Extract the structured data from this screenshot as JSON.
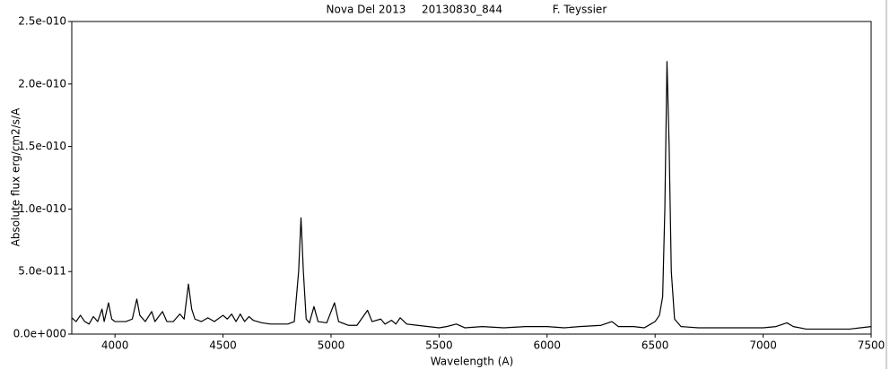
{
  "chart_data": {
    "type": "line",
    "title": [
      "Nova Del 2013",
      "20130830_844",
      "F. Teyssier"
    ],
    "x_label": "Wavelength (A)",
    "y_label": "Absolute flux erg/cm2/s/A",
    "xlim": [
      3800,
      7500
    ],
    "xticks": [
      4000,
      4500,
      5000,
      5500,
      6000,
      6500,
      7000,
      7500
    ],
    "ylim": [
      0,
      2.5e-10
    ],
    "yticks": [
      {
        "value": 0,
        "label": "0.0e+000"
      },
      {
        "value": 5e-11,
        "label": "5.0e-011"
      },
      {
        "value": 1e-10,
        "label": "1.0e-010"
      },
      {
        "value": 1.5e-10,
        "label": "1.5e-010"
      },
      {
        "value": 2e-10,
        "label": "2.0e-010"
      },
      {
        "value": 2.5e-10,
        "label": "2.5e-010"
      }
    ],
    "color": "#000000",
    "x": [
      3800,
      3820,
      3840,
      3860,
      3880,
      3900,
      3920,
      3940,
      3950,
      3970,
      3985,
      4000,
      4050,
      4080,
      4101,
      4115,
      4140,
      4170,
      4185,
      4220,
      4240,
      4270,
      4300,
      4320,
      4340,
      4355,
      4370,
      4400,
      4430,
      4460,
      4500,
      4520,
      4540,
      4560,
      4580,
      4600,
      4620,
      4640,
      4680,
      4720,
      4760,
      4800,
      4830,
      4850,
      4861,
      4872,
      4885,
      4900,
      4921,
      4940,
      4980,
      5016,
      5035,
      5080,
      5120,
      5169,
      5190,
      5230,
      5250,
      5280,
      5300,
      5320,
      5350,
      5400,
      5450,
      5500,
      5535,
      5580,
      5620,
      5700,
      5800,
      5900,
      6000,
      6080,
      6150,
      6250,
      6300,
      6330,
      6400,
      6450,
      6480,
      6500,
      6520,
      6535,
      6545,
      6555,
      6565,
      6575,
      6590,
      6620,
      6700,
      6800,
      6900,
      7000,
      7060,
      7110,
      7140,
      7200,
      7300,
      7400,
      7450,
      7500
    ],
    "values": [
      1.3e-11,
      1e-11,
      1.5e-11,
      1e-11,
      8e-12,
      1.4e-11,
      1e-11,
      2e-11,
      1e-11,
      2.5e-11,
      1.2e-11,
      1e-11,
      1e-11,
      1.2e-11,
      2.8e-11,
      1.5e-11,
      1e-11,
      1.8e-11,
      1e-11,
      1.8e-11,
      1e-11,
      1e-11,
      1.6e-11,
      1.2e-11,
      4e-11,
      2e-11,
      1.2e-11,
      1e-11,
      1.3e-11,
      1e-11,
      1.5e-11,
      1.2e-11,
      1.6e-11,
      1e-11,
      1.6e-11,
      1e-11,
      1.4e-11,
      1.1e-11,
      9e-12,
      8e-12,
      8e-12,
      8e-12,
      1e-11,
      5e-11,
      9.3e-11,
      5e-11,
      1.2e-11,
      9e-12,
      2.2e-11,
      1e-11,
      9e-12,
      2.5e-11,
      1e-11,
      7e-12,
      7e-12,
      1.9e-11,
      1e-11,
      1.2e-11,
      8e-12,
      1.1e-11,
      8e-12,
      1.3e-11,
      8e-12,
      7e-12,
      6e-12,
      5e-12,
      6e-12,
      8e-12,
      5e-12,
      6e-12,
      5e-12,
      6e-12,
      6e-12,
      5e-12,
      6e-12,
      7e-12,
      1e-11,
      6e-12,
      6e-12,
      5e-12,
      8e-12,
      1e-11,
      1.5e-11,
      3e-11,
      1e-10,
      2.18e-10,
      1.5e-10,
      5e-11,
      1.2e-11,
      6e-12,
      5e-12,
      5e-12,
      5e-12,
      5e-12,
      6e-12,
      9e-12,
      6e-12,
      4e-12,
      4e-12,
      4e-12,
      5e-12,
      6e-12
    ]
  }
}
